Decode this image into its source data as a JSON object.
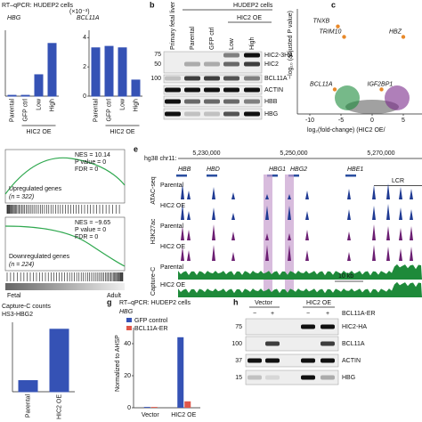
{
  "a": {
    "title": "RT–qPCR: HUDEP2 cells",
    "group_label": "HIC2 OE",
    "charts": [
      {
        "title": "HBG",
        "categories": [
          "Parental",
          "GFP ctrl",
          "Low",
          "High"
        ],
        "values": [
          0.05,
          0.05,
          1.3,
          3.2
        ],
        "ylim": [
          0,
          4
        ]
      },
      {
        "title": "BCL11A",
        "unit": "(×10⁻³)",
        "categories": [
          "Parental",
          "GFP ctrl",
          "Low",
          "High"
        ],
        "values": [
          3.3,
          3.4,
          3.3,
          1.1
        ],
        "ylim": [
          0,
          4.5
        ],
        "yticks": [
          0,
          2,
          4
        ]
      }
    ]
  },
  "b": {
    "letter": "b",
    "header": "HUDEP2 cells",
    "group": "HIC2 OE",
    "lanes": [
      "Primary fetal liver",
      "Parental",
      "GFP ctrl",
      "Low",
      "High"
    ],
    "markers": [
      75,
      50,
      100
    ],
    "rows": [
      "HIC2-3HA",
      "HIC2",
      "BCL11A",
      "ACTIN",
      "HBB",
      "HBG"
    ]
  },
  "c": {
    "letter": "c",
    "ylabel": "−log₁₀ (adjusted P value)",
    "xlabel": "log₂(fold-change) (HIC2 OE/",
    "xlim": [
      -12,
      8
    ],
    "ylim": [
      0,
      60
    ],
    "xticks": [
      -10,
      -5,
      0,
      5
    ],
    "genes": [
      {
        "label": "TNXB",
        "x": -5.5,
        "y": 50
      },
      {
        "label": "TRIM10",
        "x": -4.5,
        "y": 44
      },
      {
        "label": "HBZ",
        "x": 5,
        "y": 44
      },
      {
        "label": "BCL11A",
        "x": -6,
        "y": 14
      },
      {
        "label": "IGF2BP1",
        "x": 1.5,
        "y": 14
      }
    ]
  },
  "d": {
    "up": {
      "stats": [
        "NES = 10.14",
        "P value = 0",
        "FDR = 0"
      ],
      "label": "Upregulated genes",
      "n": "(n = 322)"
    },
    "down": {
      "stats": [
        "NES = −9.65",
        "P value = 0",
        "FDR = 0"
      ],
      "label": "Downregulated genes",
      "n": "(n = 224)"
    },
    "left": "Fetal",
    "right": "Adult"
  },
  "e": {
    "letter": "e",
    "locus": "hg38 chr11:",
    "coords": [
      "5,230,000",
      "5,250,000",
      "5,270,000"
    ],
    "genes": [
      "HBB",
      "HBD",
      "HBG1",
      "HBG2",
      "HBE1",
      "LCR"
    ],
    "assays": [
      "ATAC-seq",
      "H3K27ac",
      "Capture-C"
    ],
    "samples": [
      "Parental",
      "HIC2 OE"
    ],
    "scale": "10 kb"
  },
  "f": {
    "title": "Capture-C counts",
    "subtitle": "HS3-HBG2",
    "categories": [
      "Parental",
      "HIC2 OE"
    ],
    "values": [
      320,
      1800
    ],
    "ylim": [
      0,
      2000
    ]
  },
  "g": {
    "letter": "g",
    "title": "RT–qPCR: HUDEP2 cells",
    "subtitle": "HBG",
    "ylabel": "Normalized to AHSP",
    "categories": [
      "Vector",
      "HIC2 OE"
    ],
    "ylim": [
      0,
      50
    ],
    "yticks": [
      0,
      20,
      40
    ],
    "series": [
      {
        "name": "GFP control",
        "color": "#3552b5",
        "values": [
          0.5,
          44
        ]
      },
      {
        "name": "BCL11A-ER",
        "color": "#e0574a",
        "values": [
          0.5,
          4
        ]
      }
    ]
  },
  "h": {
    "letter": "h",
    "groups": [
      "Vector",
      "HIC2 OE"
    ],
    "treatment": "BCL11A-ER",
    "signs": [
      "−",
      "+",
      "−",
      "+"
    ],
    "markers": [
      75,
      100,
      37,
      15
    ],
    "rows": [
      "HIC2-HA",
      "BCL11A",
      "ACTIN",
      "HBG"
    ]
  }
}
